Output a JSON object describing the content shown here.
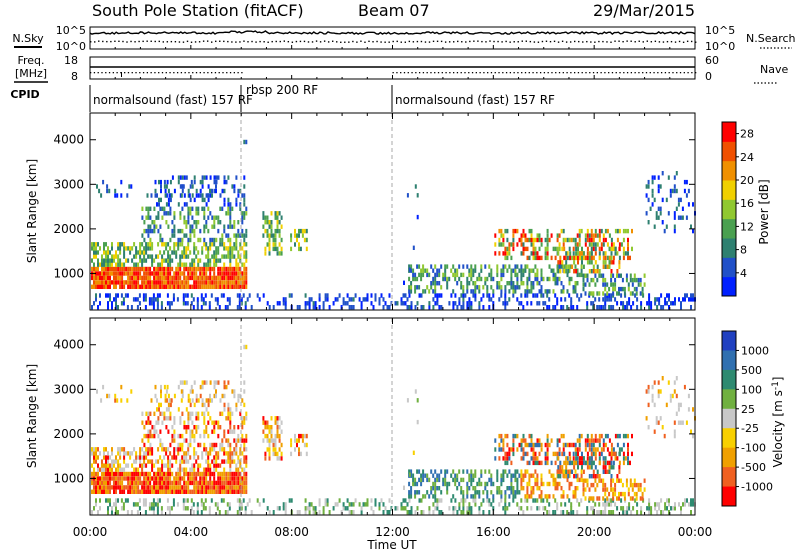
{
  "header": {
    "station": "South Pole Station (fitACF)",
    "beam": "Beam 07",
    "date": "29/Mar/2015"
  },
  "strip_panels": {
    "nsky_label": "N.Sky",
    "nsearch_label": "N.Search",
    "freq_label_line1": "Freq.",
    "freq_label_line2": "[MHz]",
    "nave_label": "Nave",
    "cpid_label": "CPID",
    "noise_left_ticks": [
      "10^5",
      "10^0"
    ],
    "noise_right_ticks": [
      "10^5",
      "10^0"
    ],
    "freq_left_ticks": [
      "18",
      "8"
    ],
    "nave_right_ticks": [
      "60",
      "0"
    ]
  },
  "cpid_modes": [
    {
      "label": "normalsound (fast) 157 RF",
      "start_hour": 0,
      "end_hour": 6
    },
    {
      "label": "rbsp 200 RF",
      "start_hour": 6,
      "end_hour": 12
    },
    {
      "label": "normalsound (fast) 157 RF",
      "start_hour": 12,
      "end_hour": 24
    }
  ],
  "colors": {
    "power_scale": [
      "#0020ff",
      "#2050c8",
      "#2e8070",
      "#4aa050",
      "#90c830",
      "#f0d000",
      "#f09000",
      "#f05000",
      "#ff0000"
    ],
    "velocity_scale": [
      "#2040c0",
      "#3070b0",
      "#2e8a70",
      "#70b040",
      "#c8c8c8",
      "#f8d000",
      "#f0a000",
      "#f06020",
      "#ff0000"
    ]
  },
  "chart_data": [
    {
      "type": "heatmap",
      "panel": "power",
      "xlabel": "",
      "ylabel": "Slant Range [km]",
      "xlim": [
        0,
        24
      ],
      "ylim": [
        180,
        4600
      ],
      "yticks": [
        "1000",
        "2000",
        "3000",
        "4000"
      ],
      "colorbar_label": "Power [dB]",
      "colorbar_ticks": [
        "4",
        "8",
        "12",
        "16",
        "20",
        "24",
        "28"
      ],
      "colorbar_range": [
        0,
        30
      ]
    },
    {
      "type": "heatmap",
      "panel": "velocity",
      "xlabel": "Time UT",
      "ylabel": "Slant Range [km]",
      "xlim": [
        0,
        24
      ],
      "ylim": [
        180,
        4600
      ],
      "xticks": [
        "00:00",
        "04:00",
        "08:00",
        "12:00",
        "16:00",
        "20:00",
        "00:00"
      ],
      "yticks": [
        "1000",
        "2000",
        "3000",
        "4000"
      ],
      "colorbar_label": "Velocity [m s^-1]",
      "colorbar_ticks": [
        "1000",
        "500",
        "100",
        "25",
        "-25",
        "-100",
        "-500",
        "-1000"
      ]
    }
  ]
}
